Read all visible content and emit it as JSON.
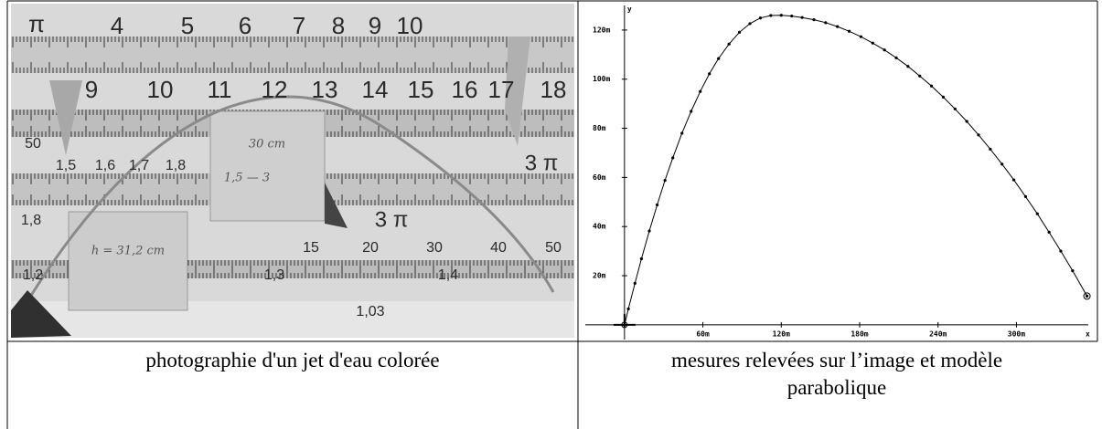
{
  "photo": {
    "labels": [
      "π",
      "4",
      "5",
      "6",
      "7",
      "8",
      "9",
      "10",
      "9",
      "10",
      "11",
      "12",
      "13",
      "14",
      "15",
      "16",
      "17",
      "18",
      "50",
      "1,5",
      "1,6",
      "1,7",
      "1,8",
      "3 π",
      "30 cm",
      "1,5 — 3",
      "1,8",
      "h = 31,2 cm",
      "3 π",
      "15",
      "20",
      "30",
      "40",
      "50",
      "1,2",
      "1,3",
      "1,4",
      "1,03"
    ]
  },
  "chart_data": {
    "type": "scatter",
    "connect": true,
    "color": "#000000",
    "x_label": "x",
    "y_label": "y",
    "x": [
      0,
      3,
      8,
      13,
      19,
      25,
      31,
      37,
      44,
      51,
      58,
      65,
      72,
      80,
      88,
      96,
      104,
      112,
      120,
      128,
      136,
      145,
      154,
      163,
      172,
      181,
      190,
      199,
      208,
      217,
      226,
      235,
      244,
      253,
      262,
      271,
      280,
      289,
      298,
      307,
      316,
      325,
      334,
      343,
      354
    ],
    "values": [
      0,
      6.5,
      16.9,
      26.9,
      38.2,
      48.8,
      58.8,
      68.0,
      78.0,
      86.9,
      95.0,
      102.2,
      108.4,
      114.3,
      119.1,
      122.6,
      124.9,
      125.9,
      126.0,
      125.7,
      125.1,
      124.2,
      123.0,
      121.4,
      119.5,
      117.3,
      114.7,
      111.9,
      108.7,
      105.2,
      101.3,
      97.2,
      92.7,
      87.9,
      82.8,
      77.3,
      71.5,
      65.4,
      59.0,
      52.2,
      45.2,
      37.7,
      30.0,
      22.0,
      11.7
    ],
    "xlim": [
      -30,
      355
    ],
    "ylim": [
      -6,
      130
    ],
    "xticks": [
      {
        "value": 60,
        "label": "60m"
      },
      {
        "value": 120,
        "label": "120m"
      },
      {
        "value": 180,
        "label": "180m"
      },
      {
        "value": 240,
        "label": "240m"
      },
      {
        "value": 300,
        "label": "300m"
      }
    ],
    "yticks": [
      {
        "value": 20,
        "label": "20m"
      },
      {
        "value": 40,
        "label": "40m"
      },
      {
        "value": 60,
        "label": "60m"
      },
      {
        "value": 80,
        "label": "80m"
      },
      {
        "value": 100,
        "label": "100m"
      },
      {
        "value": 120,
        "label": "120m"
      }
    ]
  },
  "captions": [
    "photographie d'un jet d'eau colorée",
    "mesures relevées sur l’image et modèle parabolique"
  ]
}
